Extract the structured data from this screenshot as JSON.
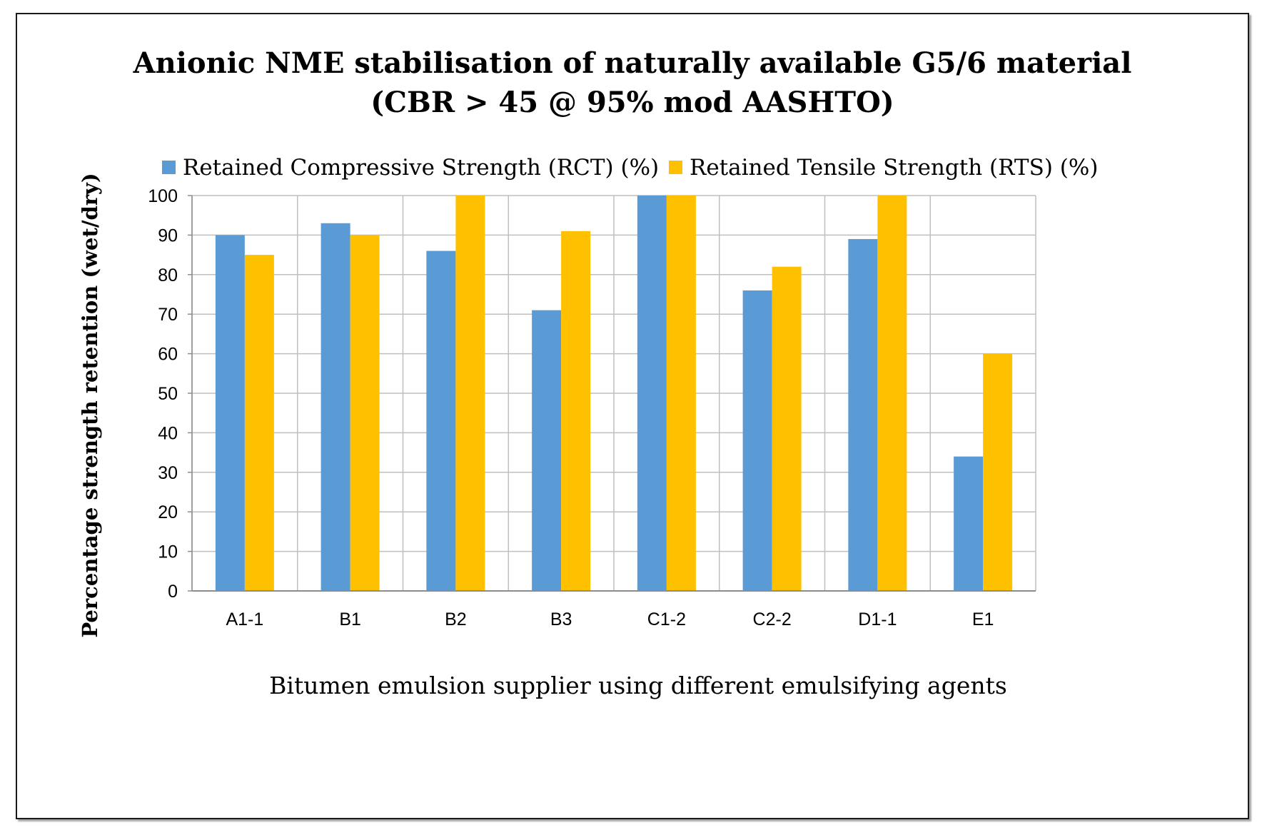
{
  "chart_data": {
    "type": "bar",
    "title": "Anionic  NME stabilisation  of naturally available  G5/6 material",
    "subtitle": "(CBR > 45 @ 95% mod AASHTO)",
    "xlabel": "Bitumen emulsion supplier using different emulsifying agents",
    "ylabel": "Percentage strength retention (wet/dry)",
    "categories": [
      "A1-1",
      "B1",
      "B2",
      "B3",
      "C1-2",
      "C2-2",
      "D1-1",
      "E1"
    ],
    "series": [
      {
        "name": "Retained Compressive Strength (RCT) (%)",
        "color": "#5b9bd5",
        "values": [
          90,
          93,
          86,
          71,
          100,
          76,
          89,
          34
        ]
      },
      {
        "name": "Retained Tensile Strength (RTS) (%)",
        "color": "#ffc000",
        "values": [
          85,
          90,
          100,
          91,
          100,
          82,
          100,
          60
        ]
      }
    ],
    "ylim": [
      0,
      100
    ],
    "yticks": [
      0,
      10,
      20,
      30,
      40,
      50,
      60,
      70,
      80,
      90,
      100
    ],
    "grid": true,
    "legend": "top"
  }
}
